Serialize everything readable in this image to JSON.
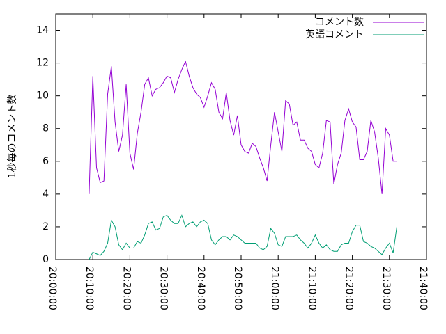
{
  "chart_data": {
    "type": "line",
    "y_label": "1秒毎のコメント数",
    "x": [
      "20:09:00",
      "20:10:00",
      "20:11:00",
      "20:12:00",
      "20:13:00",
      "20:14:00",
      "20:15:00",
      "20:16:00",
      "20:17:00",
      "20:18:00",
      "20:19:00",
      "20:20:00",
      "20:21:00",
      "20:22:00",
      "20:23:00",
      "20:24:00",
      "20:25:00",
      "20:26:00",
      "20:27:00",
      "20:28:00",
      "20:29:00",
      "20:30:00",
      "20:31:00",
      "20:32:00",
      "20:33:00",
      "20:34:00",
      "20:35:00",
      "20:36:00",
      "20:37:00",
      "20:38:00",
      "20:39:00",
      "20:40:00",
      "20:41:00",
      "20:42:00",
      "20:43:00",
      "20:44:00",
      "20:45:00",
      "20:46:00",
      "20:47:00",
      "20:48:00",
      "20:49:00",
      "20:50:00",
      "20:51:00",
      "20:52:00",
      "20:53:00",
      "20:54:00",
      "20:55:00",
      "20:56:00",
      "20:57:00",
      "20:58:00",
      "20:59:00",
      "21:00:00",
      "21:01:00",
      "21:02:00",
      "21:03:00",
      "21:04:00",
      "21:05:00",
      "21:06:00",
      "21:07:00",
      "21:08:00",
      "21:09:00",
      "21:10:00",
      "21:11:00",
      "21:12:00",
      "21:13:00",
      "21:14:00",
      "21:15:00",
      "21:16:00",
      "21:17:00",
      "21:18:00",
      "21:19:00",
      "21:20:00",
      "21:21:00",
      "21:22:00",
      "21:23:00",
      "21:24:00",
      "21:25:00",
      "21:26:00",
      "21:27:00",
      "21:28:00",
      "21:29:00",
      "21:30:00",
      "21:31:00",
      "21:32:00"
    ],
    "series": [
      {
        "name": "コメント数",
        "color": "#9400d3",
        "values": [
          4.0,
          11.2,
          5.6,
          4.7,
          4.8,
          10.1,
          11.8,
          8.4,
          6.6,
          7.6,
          10.7,
          6.5,
          5.5,
          7.7,
          9.0,
          10.7,
          11.1,
          10.0,
          10.4,
          10.5,
          10.8,
          11.2,
          11.1,
          10.2,
          11.0,
          11.6,
          12.1,
          11.2,
          10.5,
          10.1,
          9.9,
          9.3,
          10.0,
          10.8,
          10.4,
          9.0,
          8.6,
          10.2,
          8.5,
          7.6,
          8.8,
          7.0,
          6.6,
          6.5,
          7.1,
          6.9,
          6.2,
          5.6,
          4.8,
          7.0,
          9.0,
          7.8,
          6.6,
          9.7,
          9.5,
          8.2,
          8.4,
          7.3,
          7.3,
          6.8,
          6.6,
          5.8,
          5.6,
          6.5,
          8.5,
          8.4,
          4.6,
          5.8,
          6.5,
          8.5,
          9.2,
          8.4,
          8.1,
          6.1,
          6.1,
          6.6,
          8.5,
          7.8,
          6.2,
          4.0,
          8.0,
          7.6,
          6.0,
          6.0
        ]
      },
      {
        "name": "英語コメント",
        "color": "#009e73",
        "values": [
          0,
          0.45,
          0.35,
          0.25,
          0.5,
          1.0,
          2.4,
          2.0,
          0.9,
          0.6,
          1.0,
          0.7,
          0.7,
          1.1,
          1.0,
          1.5,
          2.2,
          2.3,
          1.8,
          1.9,
          2.6,
          2.7,
          2.4,
          2.2,
          2.2,
          2.7,
          2.0,
          2.2,
          2.3,
          2.0,
          2.3,
          2.4,
          2.2,
          1.2,
          0.9,
          1.2,
          1.4,
          1.4,
          1.2,
          1.5,
          1.4,
          1.2,
          1.0,
          1.0,
          1.0,
          1.0,
          0.7,
          0.6,
          0.8,
          1.9,
          1.6,
          0.9,
          0.8,
          1.4,
          1.4,
          1.4,
          1.5,
          1.2,
          1.0,
          0.7,
          1.0,
          1.5,
          1.0,
          0.7,
          0.9,
          0.6,
          0.5,
          0.5,
          0.9,
          1.0,
          1.0,
          1.7,
          2.1,
          2.1,
          1.1,
          1.0,
          0.8,
          0.7,
          0.5,
          0.3,
          0.7,
          1.0,
          0.4,
          2.0
        ]
      }
    ],
    "xlim": [
      "20:00:00",
      "21:40:00"
    ],
    "xticks": [
      "20:00:00",
      "20:10:00",
      "20:20:00",
      "20:30:00",
      "20:40:00",
      "20:50:00",
      "21:00:00",
      "21:10:00",
      "21:20:00",
      "21:30:00",
      "21:40:00"
    ],
    "ylim": [
      0,
      15
    ],
    "yticks": [
      0,
      2,
      4,
      6,
      8,
      10,
      12,
      14
    ],
    "legend": "top right"
  }
}
